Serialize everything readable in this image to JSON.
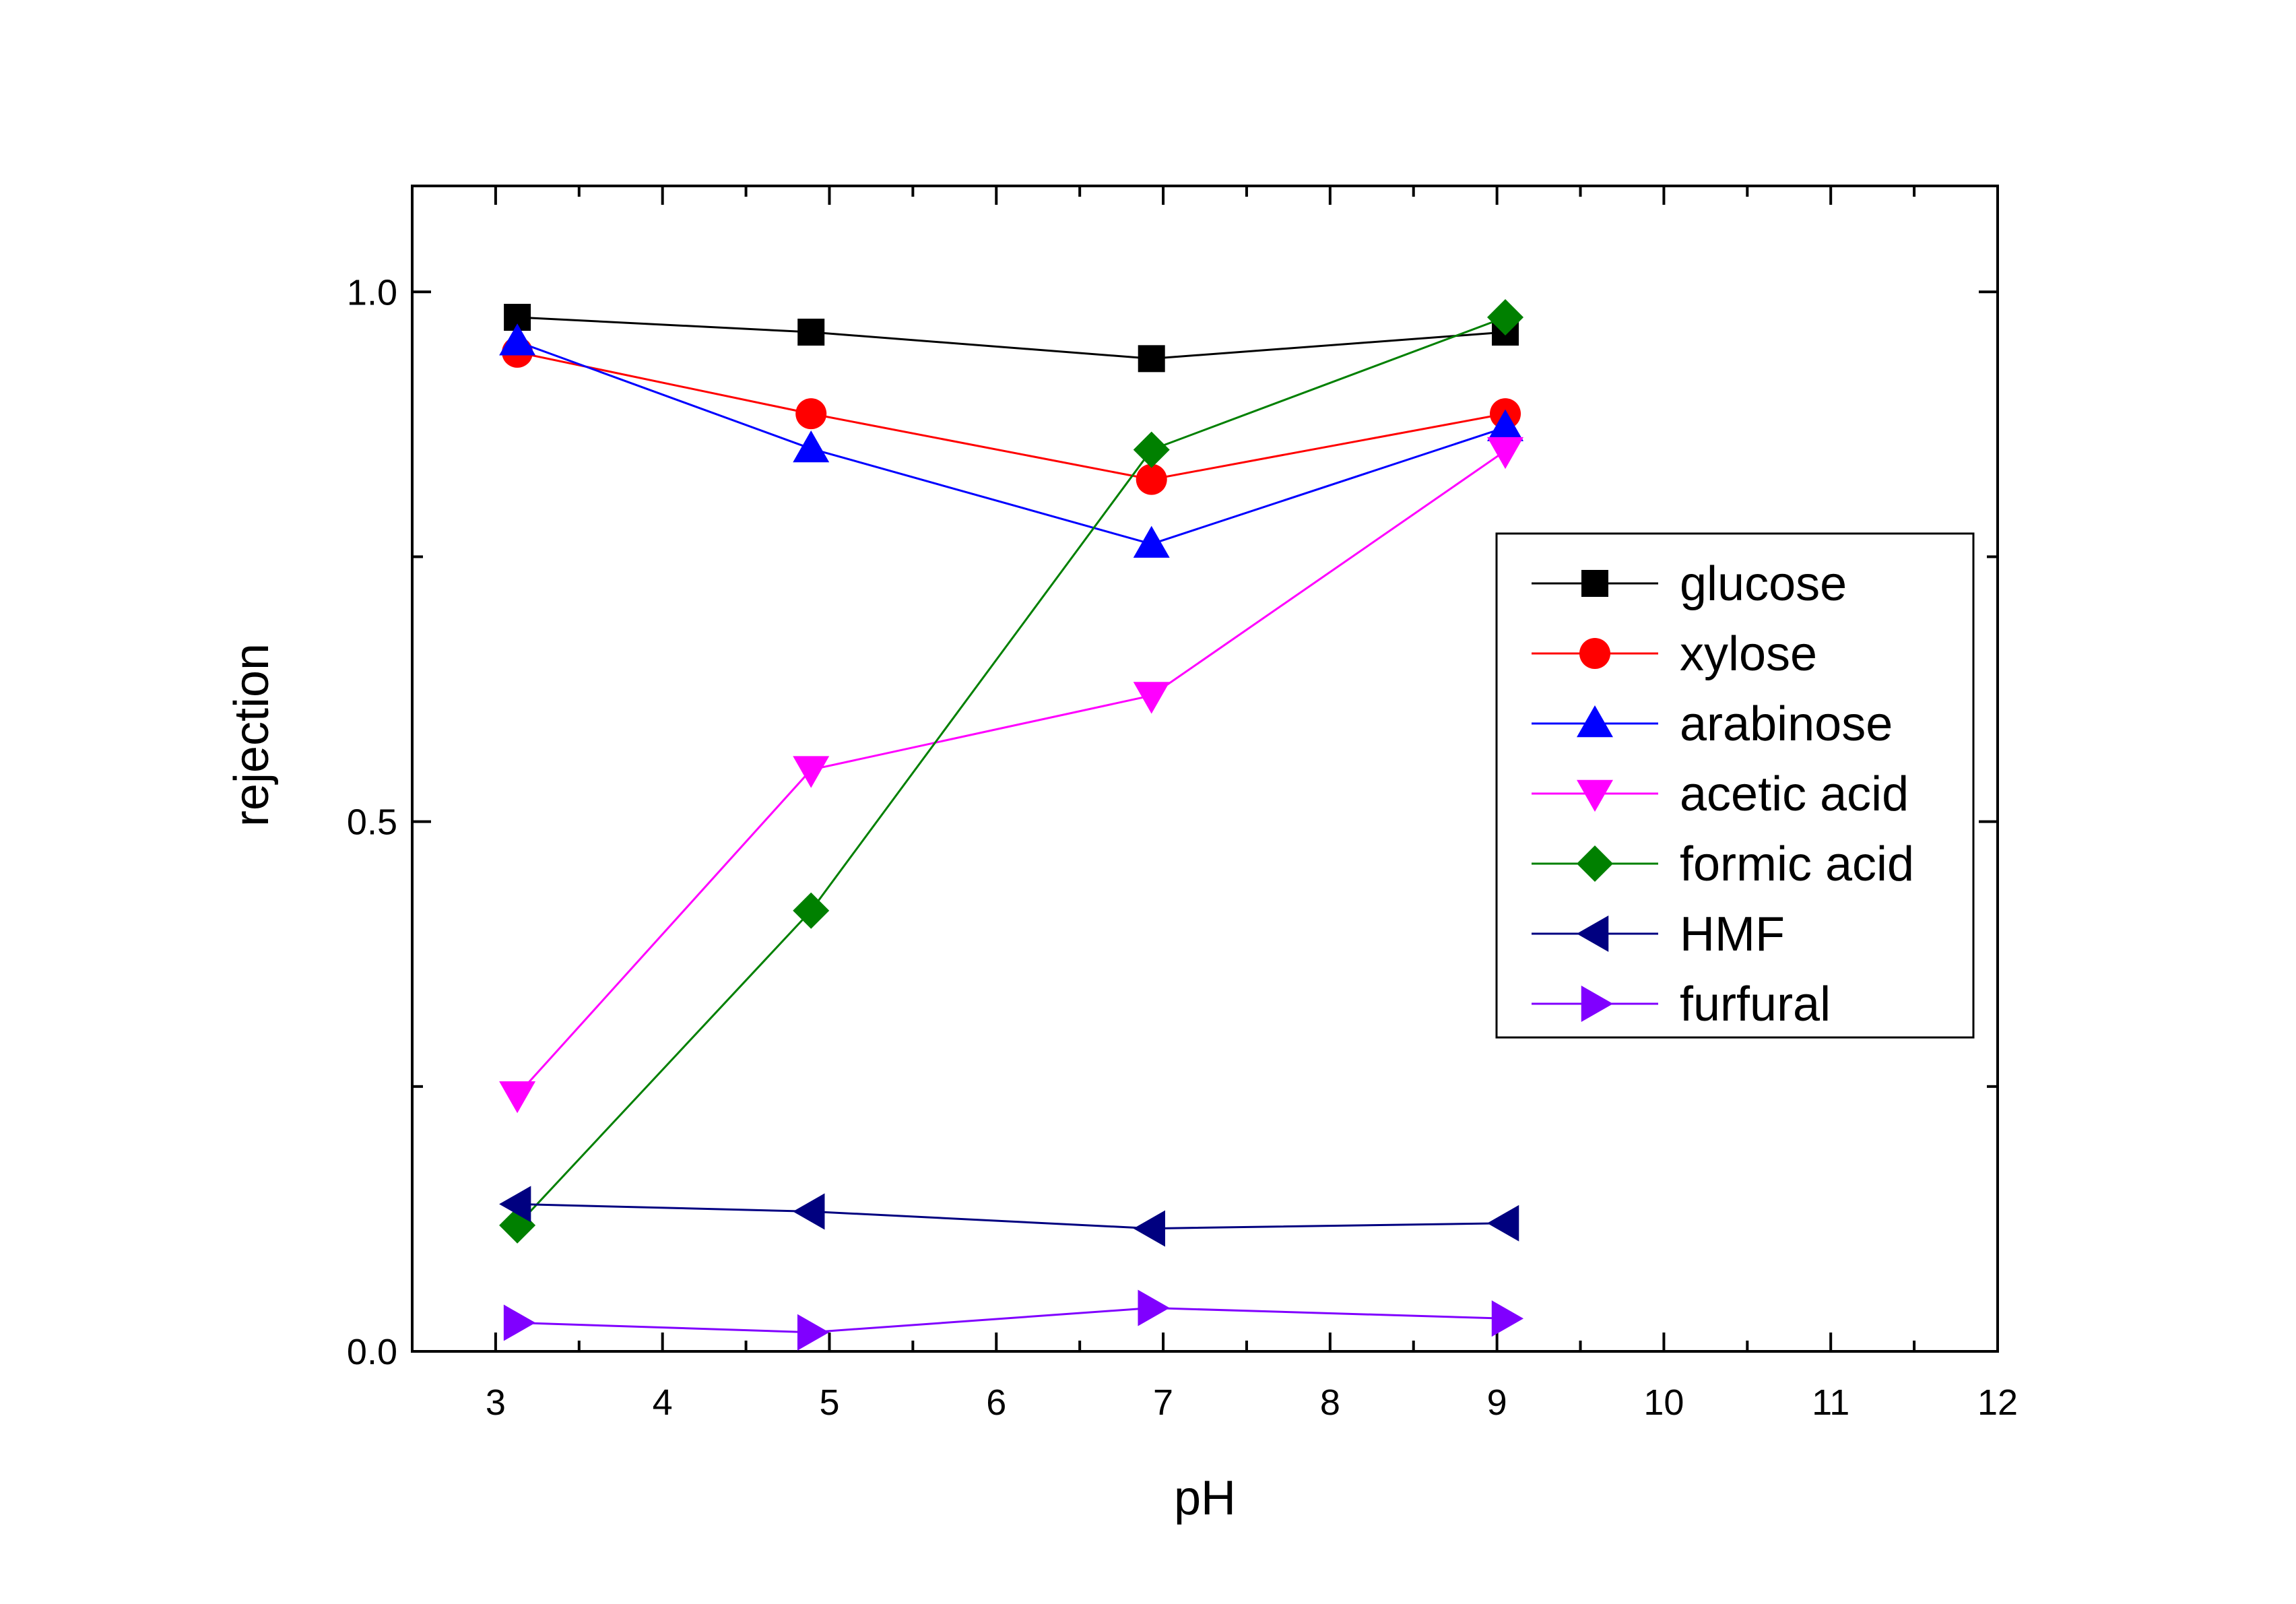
{
  "chart_data": {
    "type": "line",
    "xlabel": "pH",
    "ylabel": "rejection",
    "xlim": [
      2.5,
      12
    ],
    "ylim": [
      0,
      1.1
    ],
    "xticks": [
      3,
      4,
      5,
      6,
      7,
      8,
      9,
      10,
      11,
      12
    ],
    "xtick_labels": [
      "3",
      "4",
      "5",
      "6",
      "7",
      "8",
      "9",
      "10",
      "11",
      "12"
    ],
    "yticks": [
      0.0,
      0.5,
      1.0
    ],
    "ytick_labels": [
      "0.0",
      "0.5",
      "1.0"
    ],
    "grid": false,
    "legend_position": "center-right",
    "series": [
      {
        "name": "glucose",
        "color": "#000000",
        "marker": "square",
        "x": [
          3.13,
          4.89,
          6.93,
          9.05
        ],
        "y": [
          0.976,
          0.962,
          0.937,
          0.962
        ]
      },
      {
        "name": "xylose",
        "color": "#ff0000",
        "marker": "circle",
        "x": [
          3.13,
          4.89,
          6.93,
          9.05
        ],
        "y": [
          0.943,
          0.885,
          0.823,
          0.885
        ]
      },
      {
        "name": "arabinose",
        "color": "#0000ff",
        "marker": "triangle-up",
        "x": [
          3.13,
          4.89,
          6.93,
          9.05
        ],
        "y": [
          0.953,
          0.852,
          0.762,
          0.872
        ]
      },
      {
        "name": "acetic acid",
        "color": "#ff00ff",
        "marker": "triangle-down",
        "x": [
          3.13,
          4.89,
          6.93,
          9.05
        ],
        "y": [
          0.242,
          0.549,
          0.619,
          0.85
        ]
      },
      {
        "name": "formic acid",
        "color": "#008000",
        "marker": "diamond",
        "x": [
          3.13,
          4.89,
          6.93,
          9.05
        ],
        "y": [
          0.119,
          0.416,
          0.851,
          0.976
        ]
      },
      {
        "name": "HMF",
        "color": "#000080",
        "marker": "triangle-left",
        "x": [
          3.13,
          4.89,
          6.93,
          9.05
        ],
        "y": [
          0.139,
          0.132,
          0.116,
          0.121
        ]
      },
      {
        "name": "furfural",
        "color": "#8000ff",
        "marker": "triangle-right",
        "x": [
          3.13,
          4.89,
          6.93,
          9.05
        ],
        "y": [
          0.027,
          0.018,
          0.041,
          0.031
        ]
      }
    ]
  }
}
